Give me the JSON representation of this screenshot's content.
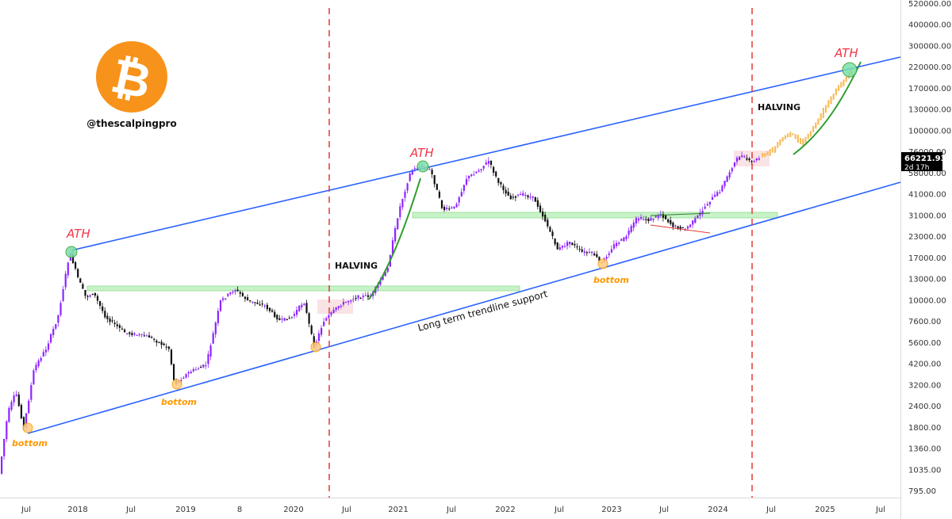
{
  "watermark": {
    "handle": "@thescalpingpro",
    "logo": "bitcoin-logo",
    "logo_color": "#f7931a"
  },
  "price_tag": {
    "price": "66221.93",
    "countdown": "2d 17h"
  },
  "annotations": {
    "ath": "ATH",
    "bottom": "bottom",
    "halving": "HALVING",
    "trendline_label": "Long term trendline support"
  },
  "colors": {
    "channel": "#2962ff",
    "halving_line": "#e53935",
    "ath_text": "#f23645",
    "bottom_text": "#ff9800",
    "candle_up": "#8e24ff",
    "candle_down": "#111111",
    "projection": "#f5b041",
    "curve": "#2e9d2e",
    "support_zone": "#a5e8a5"
  },
  "chart_data": {
    "type": "candlestick",
    "title": "",
    "xlabel": "",
    "ylabel": "",
    "y_scale": "log",
    "x_ticks": [
      "Jul",
      "2018",
      "Jul",
      "2019",
      "8",
      "2020",
      "Jul",
      "2021",
      "Jul",
      "2022",
      "Jul",
      "2023",
      "Jul",
      "2024",
      "Jul",
      "2025",
      "Jul"
    ],
    "y_ticks": [
      "520000.00",
      "400000.00",
      "300000.00",
      "220000.00",
      "170000.00",
      "130000.00",
      "100000.00",
      "76000.00",
      "58000.00",
      "41000.00",
      "31000.00",
      "23000.00",
      "17000.00",
      "13000.00",
      "10000.00",
      "7600.00",
      "5600.00",
      "4200.00",
      "3200.00",
      "2400.00",
      "1800.00",
      "1360.00",
      "1035.00",
      "795.00"
    ],
    "events": [
      {
        "label": "ATH",
        "date": "2017-12",
        "price": 19700
      },
      {
        "label": "ATH",
        "date": "2021-04",
        "price": 64000
      },
      {
        "label": "ATH",
        "date": "2025-03",
        "price": 215000
      },
      {
        "label": "bottom",
        "date": "2017-07",
        "price": 1850
      },
      {
        "label": "bottom",
        "date": "2018-12",
        "price": 3200
      },
      {
        "label": "bottom",
        "date": "2022-11",
        "price": 15800
      },
      {
        "label": "HALVING",
        "date": "2020-05"
      },
      {
        "label": "HALVING",
        "date": "2024-04"
      }
    ],
    "last_price": 66221.93,
    "legend": "none",
    "grid": false
  }
}
